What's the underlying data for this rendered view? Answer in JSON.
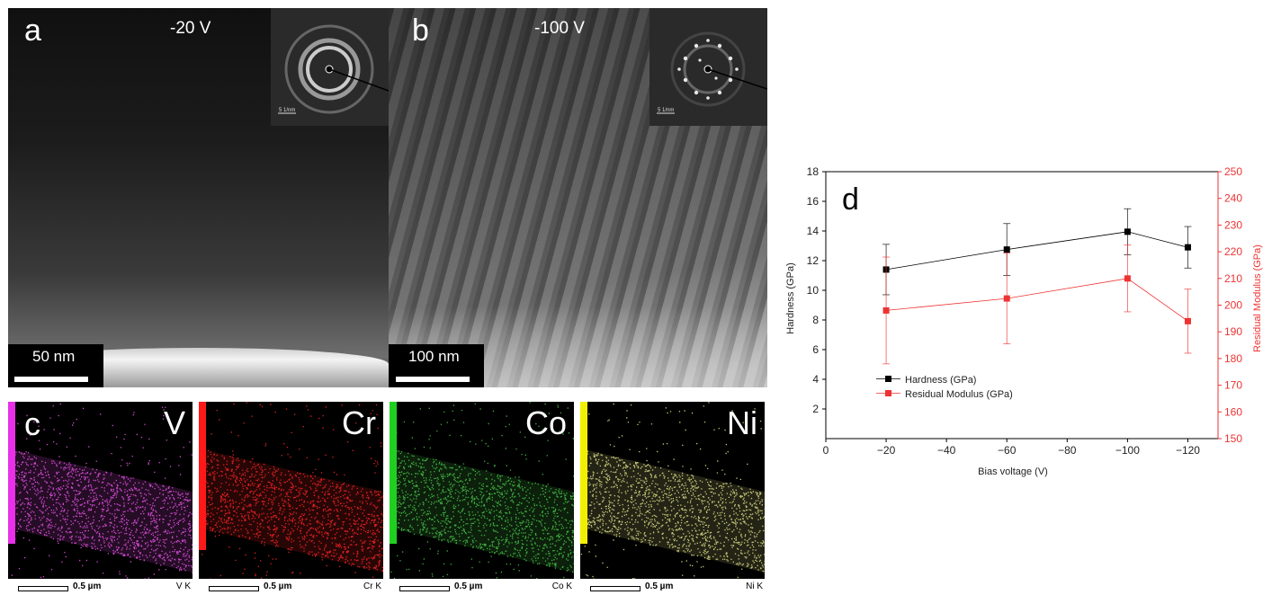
{
  "panel_a": {
    "letter": "a",
    "voltage": "-20 V",
    "scale_bar": "50 nm",
    "inset_scale": "5 1/nm"
  },
  "panel_b": {
    "letter": "b",
    "voltage": "-100 V",
    "scale_bar": "100 nm",
    "inset_scale": "5 1/nm"
  },
  "eds": {
    "letter": "c",
    "scale_label": "0.5 µm",
    "maps": [
      {
        "element": "V",
        "line": "V K",
        "color": "#d04ad0",
        "bar_color": "#e830e8"
      },
      {
        "element": "Cr",
        "line": "Cr K",
        "color": "#e02020",
        "bar_color": "#ff1818"
      },
      {
        "element": "Co",
        "line": "Co K",
        "color": "#40b040",
        "bar_color": "#20d020"
      },
      {
        "element": "Ni",
        "line": "Ni K",
        "color": "#c8c87a",
        "bar_color": "#f0f000"
      }
    ]
  },
  "chart_data": {
    "type": "line",
    "panel_label": "d",
    "xlabel": "Bias voltage (V)",
    "ylabel": "Hardness (GPa)",
    "y2label": "Residual Modulus (GPa)",
    "x_ticks": [
      0,
      -20,
      -40,
      -60,
      -80,
      -100,
      -120
    ],
    "x_tick_labels": [
      "0",
      "−20",
      "−40",
      "−60",
      "−80",
      "−100",
      "−120"
    ],
    "xlim": [
      0,
      -130
    ],
    "ylim": [
      0,
      18
    ],
    "y_ticks": [
      2,
      4,
      6,
      8,
      10,
      12,
      14,
      16,
      18
    ],
    "y2lim": [
      150,
      250
    ],
    "y2_ticks": [
      150,
      160,
      170,
      180,
      190,
      200,
      210,
      220,
      230,
      240,
      250
    ],
    "x": [
      -20,
      -60,
      -100,
      -120
    ],
    "series": [
      {
        "name": "Hardness (GPa)",
        "axis": "left",
        "color": "#000000",
        "values": [
          11.4,
          12.75,
          13.95,
          12.9
        ],
        "errors": [
          1.7,
          1.75,
          1.55,
          1.4
        ]
      },
      {
        "name": "Residual Modulus (GPa)",
        "axis": "right",
        "color": "#ee3333",
        "values": [
          198,
          202.5,
          210,
          194
        ],
        "errors": [
          20,
          17,
          12.5,
          12
        ]
      }
    ],
    "legend_position": "lower-left"
  }
}
